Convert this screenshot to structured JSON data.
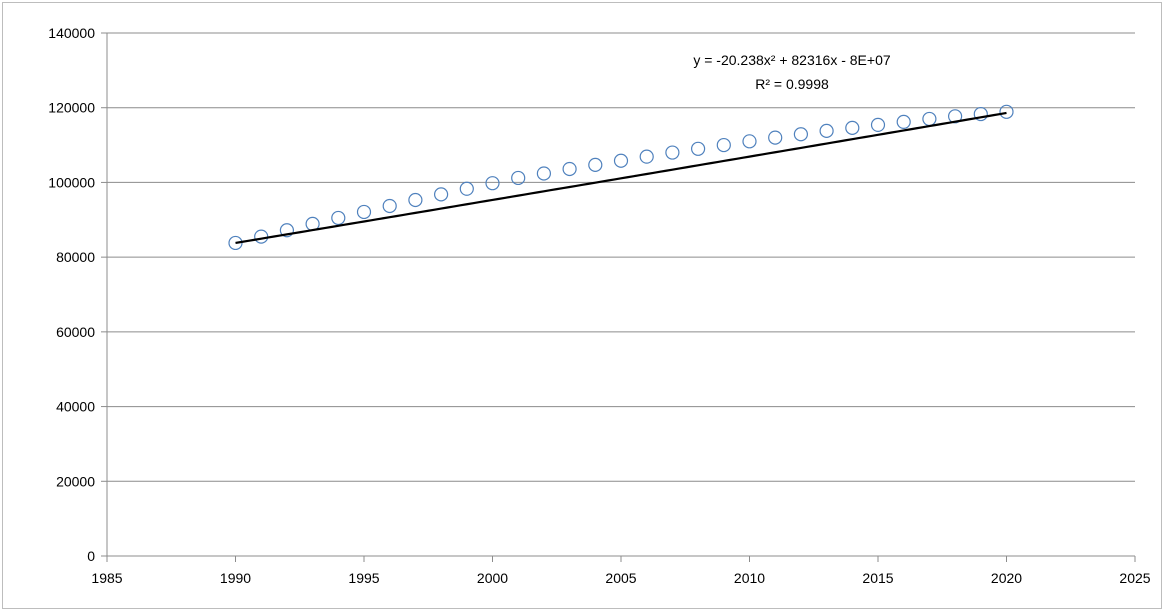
{
  "chart_data": {
    "type": "scatter",
    "title": "",
    "xlabel": "",
    "ylabel": "",
    "xlim": [
      1985,
      2025
    ],
    "ylim": [
      0,
      140000
    ],
    "x_ticks": [
      1985,
      1990,
      1995,
      2000,
      2005,
      2010,
      2015,
      2020,
      2025
    ],
    "y_ticks": [
      0,
      20000,
      40000,
      60000,
      80000,
      100000,
      120000,
      140000
    ],
    "grid": "horizontal",
    "legend": "none",
    "series": [
      {
        "marker": "open-circle",
        "color": "#4f81bd",
        "x": [
          1990,
          1991,
          1992,
          1993,
          1994,
          1995,
          1996,
          1997,
          1998,
          1999,
          2000,
          2001,
          2002,
          2003,
          2004,
          2005,
          2006,
          2007,
          2008,
          2009,
          2010,
          2011,
          2012,
          2013,
          2014,
          2015,
          2016,
          2017,
          2018,
          2019,
          2020
        ],
        "y": [
          83800,
          85500,
          87200,
          88900,
          90500,
          92100,
          93700,
          95300,
          96800,
          98300,
          99800,
          101200,
          102400,
          103600,
          104700,
          105800,
          106900,
          108000,
          109000,
          110000,
          111000,
          112000,
          112900,
          113800,
          114600,
          115400,
          116200,
          117000,
          117700,
          118300,
          118900
        ]
      }
    ],
    "trendline": {
      "type": "polynomial-2",
      "color": "#000000",
      "x_range": [
        1990,
        2020
      ],
      "y_start": 83800,
      "y_mid": 101100,
      "y_end": 118600,
      "equation": "y = -20.238x² + 82316x - 8E+07",
      "r_squared": "R² = 0.9998"
    }
  }
}
